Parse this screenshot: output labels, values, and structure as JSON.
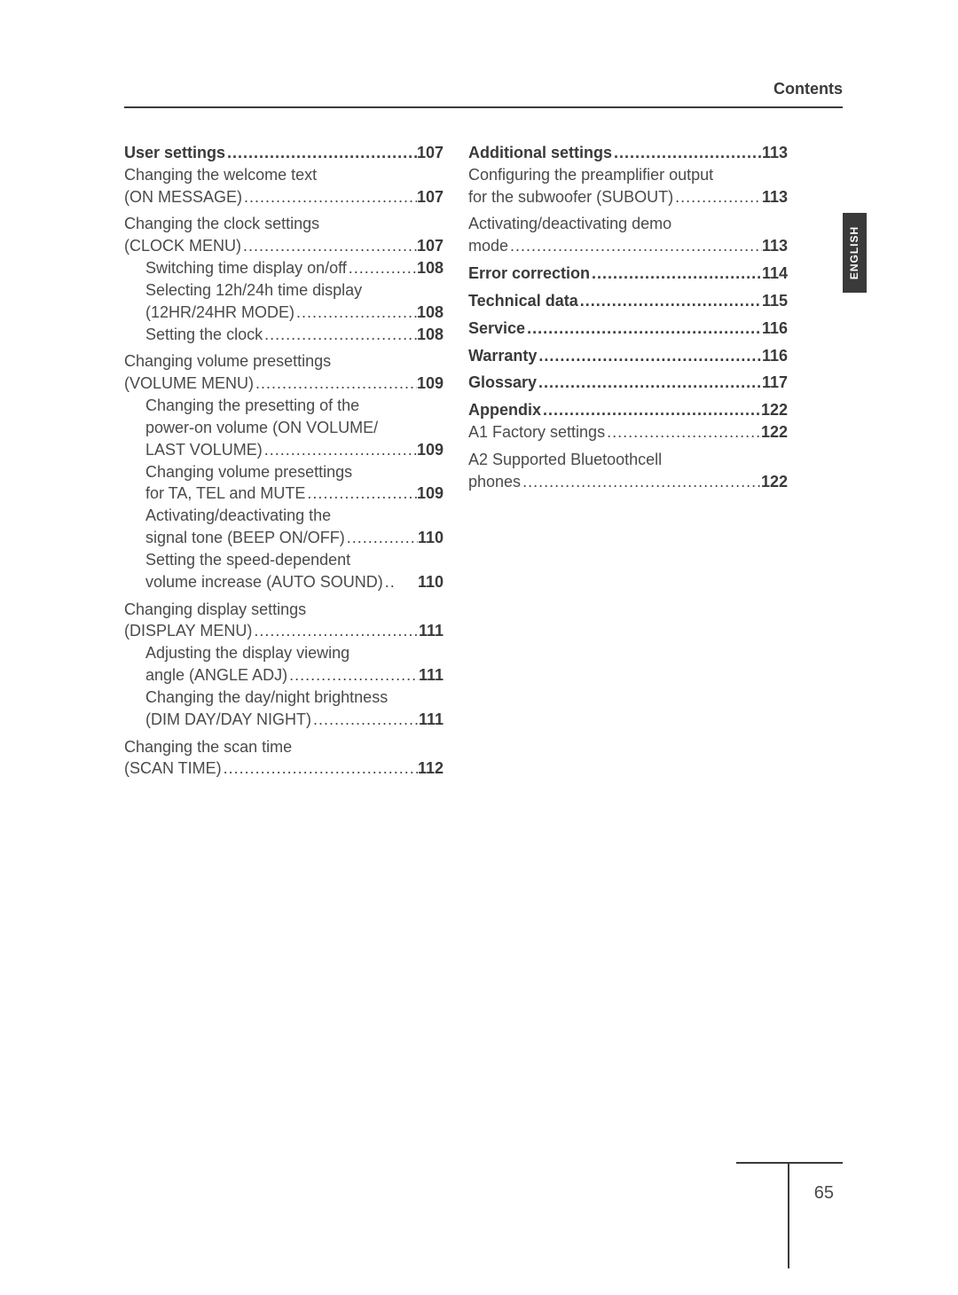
{
  "header": {
    "title": "Contents"
  },
  "tab": {
    "label": "ENGLISH"
  },
  "pageNumber": "65",
  "leftCol": [
    {
      "kind": "line",
      "label": "User settings",
      "page": "107",
      "bold": true,
      "boldPage": true
    },
    {
      "kind": "text",
      "label": "Changing the welcome text"
    },
    {
      "kind": "line",
      "label": "(ON MESSAGE)",
      "page": "107",
      "boldPage": true
    },
    {
      "kind": "text",
      "label": "Changing the clock settings",
      "groupTop": true
    },
    {
      "kind": "line",
      "label": "(CLOCK MENU)",
      "page": "107",
      "boldPage": true
    },
    {
      "kind": "line",
      "label": "Switching time display on/off",
      "page": "108",
      "boldPage": true,
      "sub": true
    },
    {
      "kind": "text",
      "label": "Selecting 12h/24h time display",
      "sub": true
    },
    {
      "kind": "line",
      "label": "(12HR/24HR MODE)",
      "page": "108",
      "boldPage": true,
      "sub": true
    },
    {
      "kind": "line",
      "label": "Setting the clock",
      "page": "108",
      "boldPage": true,
      "sub": true
    },
    {
      "kind": "text",
      "label": "Changing volume presettings",
      "groupTop": true
    },
    {
      "kind": "line",
      "label": "(VOLUME MENU)",
      "page": "109",
      "boldPage": true
    },
    {
      "kind": "text",
      "label": "Changing the presetting of the",
      "sub": true
    },
    {
      "kind": "text",
      "label": "power-on volume (ON VOLUME/",
      "sub": true
    },
    {
      "kind": "line",
      "label": "LAST VOLUME)",
      "page": "109",
      "boldPage": true,
      "sub": true
    },
    {
      "kind": "text",
      "label": "Changing volume presettings",
      "sub": true
    },
    {
      "kind": "line",
      "label": "for TA, TEL and MUTE",
      "page": "109",
      "boldPage": true,
      "sub": true
    },
    {
      "kind": "text",
      "label": "Activating/deactivating the",
      "sub": true
    },
    {
      "kind": "line",
      "label": "signal tone (BEEP ON/OFF)",
      "page": "110",
      "boldPage": true,
      "sub": true
    },
    {
      "kind": "text",
      "label": "Setting the speed-dependent",
      "sub": true
    },
    {
      "kind": "line",
      "label": "volume increase (AUTO SOUND)",
      "page": "110",
      "boldPage": true,
      "sub": true,
      "tight": true
    },
    {
      "kind": "text",
      "label": "Changing display settings",
      "groupTop": true
    },
    {
      "kind": "line",
      "label": "(DISPLAY MENU)",
      "page": "111",
      "boldPage": true
    },
    {
      "kind": "text",
      "label": "Adjusting the display viewing",
      "sub": true
    },
    {
      "kind": "line",
      "label": "angle (ANGLE ADJ)",
      "page": "111",
      "boldPage": true,
      "sub": true
    },
    {
      "kind": "text",
      "label": "Changing the day/night brightness",
      "sub": true
    },
    {
      "kind": "line",
      "label": "(DIM DAY/DAY NIGHT)",
      "page": "111",
      "boldPage": true,
      "sub": true
    },
    {
      "kind": "text",
      "label": "Changing the scan time",
      "groupTop": true
    },
    {
      "kind": "line",
      "label": "(SCAN TIME)",
      "page": "112",
      "boldPage": true
    }
  ],
  "rightCol": [
    {
      "kind": "line",
      "label": "Additional settings",
      "page": "113",
      "bold": true,
      "boldPage": true
    },
    {
      "kind": "text",
      "label": "Configuring the preamplifier output"
    },
    {
      "kind": "line",
      "label": "for the subwoofer (SUBOUT)",
      "page": "113",
      "boldPage": true
    },
    {
      "kind": "text",
      "label": "Activating/deactivating demo",
      "groupTop": true
    },
    {
      "kind": "line",
      "label": "mode",
      "page": "113",
      "boldPage": true
    },
    {
      "kind": "line",
      "label": "Error correction",
      "page": "114",
      "bold": true,
      "boldPage": true,
      "groupTop": true
    },
    {
      "kind": "line",
      "label": "Technical data",
      "page": "115",
      "bold": true,
      "boldPage": true,
      "groupTop": true
    },
    {
      "kind": "line",
      "label": "Service",
      "page": "116",
      "bold": true,
      "boldPage": true,
      "groupTop": true
    },
    {
      "kind": "line",
      "label": "Warranty",
      "page": "116",
      "bold": true,
      "boldPage": true,
      "groupTop": true
    },
    {
      "kind": "line",
      "label": "Glossary",
      "page": "117",
      "bold": true,
      "boldPage": true,
      "groupTop": true
    },
    {
      "kind": "line",
      "label": "Appendix",
      "page": "122",
      "bold": true,
      "boldPage": true,
      "groupTop": true
    },
    {
      "kind": "line",
      "label": "A1 Factory settings",
      "page": "122",
      "boldPage": true
    },
    {
      "kind": "text",
      "label": "A2 Supported Bluetoothcell",
      "groupTop": true
    },
    {
      "kind": "line",
      "label": "phones",
      "page": "122",
      "boldPage": true
    }
  ]
}
